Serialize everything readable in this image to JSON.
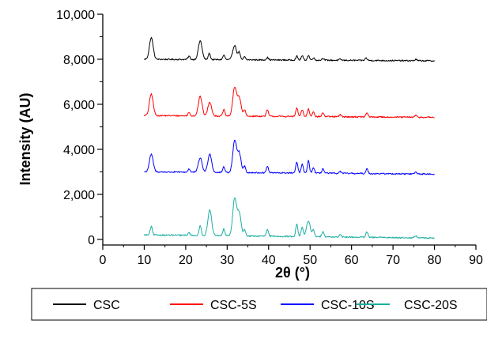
{
  "chart_data": {
    "type": "line",
    "xlabel": "2θ (°)",
    "ylabel": "Intensity (AU)",
    "xlim": [
      0,
      90
    ],
    "ylim": [
      -250,
      10000
    ],
    "x_ticks": [
      0,
      10,
      20,
      30,
      40,
      50,
      60,
      70,
      80,
      90
    ],
    "y_ticks": [
      0,
      2000,
      4000,
      6000,
      8000,
      10000
    ],
    "x_tick_labels": [
      "0",
      "10",
      "20",
      "30",
      "40",
      "50",
      "60",
      "70",
      "80",
      "90"
    ],
    "y_tick_labels": [
      "0",
      "2,000",
      "4,000",
      "6,000",
      "8,000",
      "10,000"
    ],
    "legend_position": "bottom",
    "series": [
      {
        "name": "CSC",
        "color": "#000000",
        "baseline": 8000,
        "end_value": 7930,
        "peaks": [
          [
            11.7,
            960
          ],
          [
            20.8,
            150
          ],
          [
            23.5,
            830
          ],
          [
            25.7,
            280
          ],
          [
            29.2,
            200
          ],
          [
            31.8,
            640
          ],
          [
            32.9,
            330
          ],
          [
            34.2,
            130
          ],
          [
            39.7,
            110
          ],
          [
            46.8,
            170
          ],
          [
            48.1,
            190
          ],
          [
            49.6,
            210
          ],
          [
            50.8,
            110
          ],
          [
            53.1,
            90
          ],
          [
            57.3,
            50
          ],
          [
            63.5,
            110
          ],
          [
            75.5,
            60
          ]
        ]
      },
      {
        "name": "CSC-5S",
        "color": "#ff0000",
        "baseline": 5500,
        "end_value": 5420,
        "peaks": [
          [
            11.7,
            960
          ],
          [
            20.8,
            150
          ],
          [
            23.5,
            860
          ],
          [
            25.8,
            610
          ],
          [
            29.2,
            280
          ],
          [
            31.8,
            1250
          ],
          [
            32.9,
            820
          ],
          [
            34.2,
            280
          ],
          [
            39.7,
            280
          ],
          [
            46.8,
            380
          ],
          [
            48.1,
            300
          ],
          [
            49.6,
            340
          ],
          [
            50.8,
            230
          ],
          [
            53.1,
            180
          ],
          [
            57.3,
            90
          ],
          [
            63.7,
            180
          ],
          [
            75.5,
            80
          ]
        ]
      },
      {
        "name": "CSC-10S",
        "color": "#0000ff",
        "baseline": 3000,
        "end_value": 2900,
        "peaks": [
          [
            11.7,
            780
          ],
          [
            20.8,
            150
          ],
          [
            23.5,
            640
          ],
          [
            25.8,
            820
          ],
          [
            29.2,
            260
          ],
          [
            31.8,
            1380
          ],
          [
            32.9,
            870
          ],
          [
            34.2,
            280
          ],
          [
            39.7,
            290
          ],
          [
            46.8,
            480
          ],
          [
            48.1,
            390
          ],
          [
            49.6,
            540
          ],
          [
            50.8,
            240
          ],
          [
            53.1,
            200
          ],
          [
            57.3,
            80
          ],
          [
            63.7,
            210
          ],
          [
            75.5,
            80
          ]
        ]
      },
      {
        "name": "CSC-20S",
        "color": "#1aaea0",
        "baseline": 200,
        "end_value": 60,
        "peaks": [
          [
            11.7,
            380
          ],
          [
            20.8,
            120
          ],
          [
            23.5,
            440
          ],
          [
            25.8,
            1150
          ],
          [
            29.2,
            300
          ],
          [
            31.8,
            1650
          ],
          [
            32.9,
            1000
          ],
          [
            34.2,
            280
          ],
          [
            39.7,
            280
          ],
          [
            46.8,
            560
          ],
          [
            48.1,
            420
          ],
          [
            49.6,
            700
          ],
          [
            50.8,
            280
          ],
          [
            53.1,
            260
          ],
          [
            57.3,
            90
          ],
          [
            63.7,
            230
          ],
          [
            75.5,
            80
          ]
        ]
      }
    ]
  }
}
